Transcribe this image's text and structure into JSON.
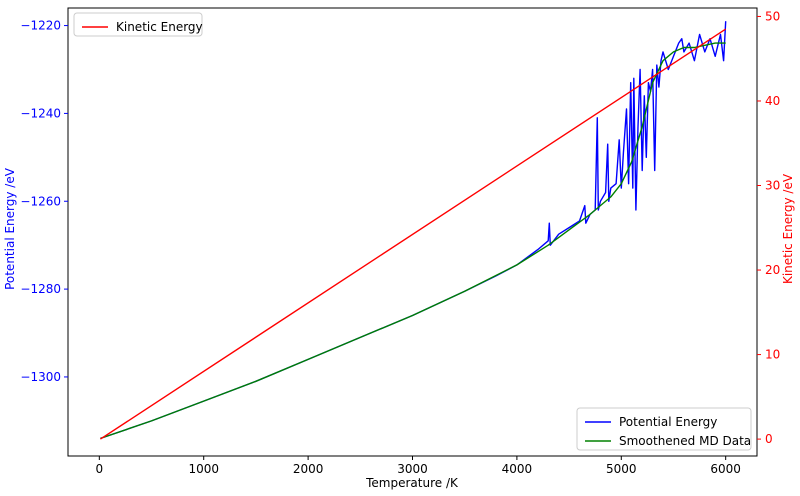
{
  "chart_data": {
    "type": "line",
    "xlabel": "Temperature /K",
    "ylabel": "Potential Energy /eV",
    "y2label": "Kinetic Energy /eV",
    "xlim": [
      -300,
      6300
    ],
    "ylim": [
      -1318,
      -1216
    ],
    "y2lim": [
      -2,
      51
    ],
    "xticks": [
      0,
      1000,
      2000,
      3000,
      4000,
      5000,
      6000
    ],
    "yticks": [
      -1300,
      -1280,
      -1260,
      -1240,
      -1220
    ],
    "y2ticks": [
      0,
      10,
      20,
      30,
      40,
      50
    ],
    "grid": false,
    "colors": {
      "potential": "#0000ff",
      "kinetic": "#ff0000",
      "smooth": "#008000",
      "left_axis": "#0000ff",
      "right_axis": "#ff0000"
    },
    "legends": [
      {
        "placement": "upper-left",
        "entries": [
          {
            "name": "Kinetic Energy",
            "color": "#ff0000"
          }
        ]
      },
      {
        "placement": "lower-right",
        "entries": [
          {
            "name": "Potential Energy",
            "color": "#0000ff"
          },
          {
            "name": "Smoothened MD Data",
            "color": "#008000"
          }
        ]
      }
    ],
    "series": [
      {
        "name": "Kinetic Energy",
        "axis": "right",
        "x": [
          10,
          6000
        ],
        "y": [
          0,
          48.5
        ]
      },
      {
        "name": "Smoothened MD Data",
        "axis": "left",
        "x": [
          10,
          500,
          1000,
          1500,
          2000,
          2500,
          3000,
          3500,
          4000,
          4300,
          4500,
          4700,
          4900,
          5000,
          5100,
          5200,
          5300,
          5400,
          5500,
          5600,
          5700,
          5800,
          5900,
          6000
        ],
        "y": [
          -1314,
          -1310,
          -1305.5,
          -1301,
          -1296,
          -1291,
          -1286,
          -1280.5,
          -1274.5,
          -1270,
          -1266.5,
          -1263,
          -1259,
          -1256,
          -1251,
          -1243,
          -1233,
          -1228,
          -1226,
          -1225,
          -1225,
          -1224.5,
          -1224,
          -1224
        ]
      },
      {
        "name": "Potential Energy",
        "axis": "left",
        "x": [
          10,
          500,
          1000,
          1500,
          2000,
          2500,
          3000,
          3500,
          3800,
          4000,
          4200,
          4300,
          4310,
          4320,
          4400,
          4500,
          4600,
          4650,
          4660,
          4700,
          4750,
          4770,
          4780,
          4800,
          4850,
          4870,
          4880,
          4900,
          4950,
          4980,
          5000,
          5020,
          5050,
          5070,
          5090,
          5110,
          5120,
          5140,
          5160,
          5180,
          5200,
          5220,
          5240,
          5260,
          5280,
          5300,
          5320,
          5340,
          5360,
          5380,
          5400,
          5450,
          5500,
          5550,
          5580,
          5600,
          5650,
          5700,
          5750,
          5800,
          5850,
          5900,
          5950,
          5980,
          6000
        ],
        "y": [
          -1314,
          -1310,
          -1305.5,
          -1301,
          -1296,
          -1291,
          -1286,
          -1280.5,
          -1277,
          -1274.5,
          -1271,
          -1269,
          -1265,
          -1270,
          -1267.5,
          -1266,
          -1264.5,
          -1261,
          -1265,
          -1263,
          -1262,
          -1241,
          -1262,
          -1260,
          -1258,
          -1247,
          -1260,
          -1257,
          -1256,
          -1246,
          -1257,
          -1249,
          -1239,
          -1256,
          -1233,
          -1257,
          -1232,
          -1262,
          -1243,
          -1230,
          -1253,
          -1236,
          -1250,
          -1233,
          -1235,
          -1230,
          -1253,
          -1229,
          -1234,
          -1228,
          -1226,
          -1230,
          -1227,
          -1224,
          -1223,
          -1226,
          -1224,
          -1228,
          -1222,
          -1226,
          -1223,
          -1227,
          -1222,
          -1228,
          -1219
        ]
      }
    ]
  }
}
